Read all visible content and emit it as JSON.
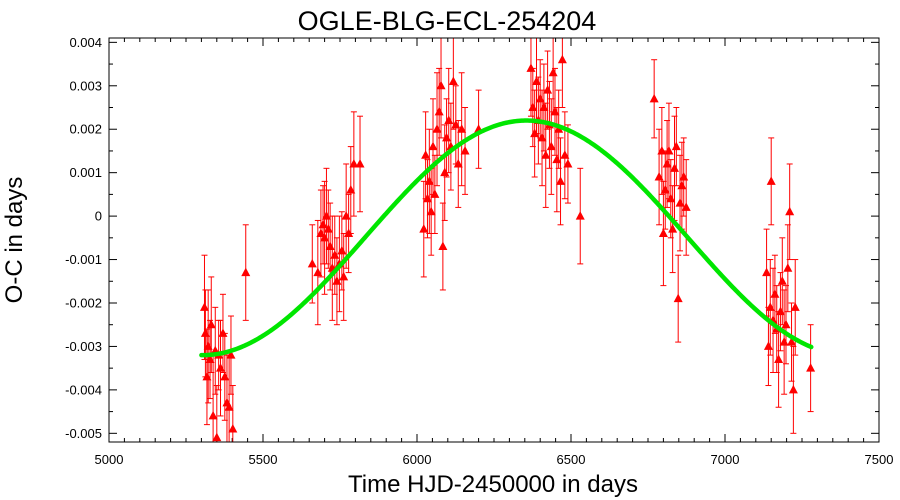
{
  "chart_data": {
    "type": "scatter",
    "title": "OGLE-BLG-ECL-254204",
    "xlabel": "Time HJD-2450000 in days",
    "ylabel": "O-C in days",
    "xlim": [
      5000,
      7500
    ],
    "ylim": [
      -0.0052,
      0.0041
    ],
    "xticks": [
      5000,
      5500,
      6000,
      6500,
      7000,
      7500
    ],
    "yticks": [
      -0.005,
      -0.004,
      -0.003,
      -0.002,
      -0.001,
      0,
      0.001,
      0.002,
      0.003,
      0.004
    ],
    "ytick_labels": [
      "-0.005",
      "-0.004",
      "-0.003",
      "-0.002",
      "-0.001",
      "0",
      "0.001",
      "0.002",
      "0.003",
      "0.004"
    ],
    "grid": false,
    "colors": {
      "points": "#ff0000",
      "fit": "#00e600"
    },
    "series": [
      {
        "kind": "points_with_errorbars",
        "marker": "triangle",
        "points": [
          {
            "x": 5310,
            "y": -0.0021,
            "err": 0.0012
          },
          {
            "x": 5313,
            "y": -0.0027,
            "err": 0.001
          },
          {
            "x": 5318,
            "y": -0.0037,
            "err": 0.0011
          },
          {
            "x": 5322,
            "y": -0.003,
            "err": 0.0013
          },
          {
            "x": 5328,
            "y": -0.0033,
            "err": 0.0009
          },
          {
            "x": 5332,
            "y": -0.0025,
            "err": 0.0011
          },
          {
            "x": 5338,
            "y": -0.0046,
            "err": 0.0014
          },
          {
            "x": 5345,
            "y": -0.0031,
            "err": 0.001
          },
          {
            "x": 5350,
            "y": -0.0051,
            "err": 0.0012
          },
          {
            "x": 5356,
            "y": -0.0032,
            "err": 0.0008
          },
          {
            "x": 5362,
            "y": -0.0035,
            "err": 0.0011
          },
          {
            "x": 5370,
            "y": -0.0027,
            "err": 0.0009
          },
          {
            "x": 5376,
            "y": -0.0037,
            "err": 0.001
          },
          {
            "x": 5383,
            "y": -0.0043,
            "err": 0.0011
          },
          {
            "x": 5390,
            "y": -0.0044,
            "err": 0.0012
          },
          {
            "x": 5396,
            "y": -0.0032,
            "err": 0.0009
          },
          {
            "x": 5402,
            "y": -0.0049,
            "err": 0.001
          },
          {
            "x": 5444,
            "y": -0.0013,
            "err": 0.0011
          },
          {
            "x": 5660,
            "y": -0.0011,
            "err": 0.0009
          },
          {
            "x": 5678,
            "y": -0.0013,
            "err": 0.0012
          },
          {
            "x": 5688,
            "y": -0.0004,
            "err": 0.001
          },
          {
            "x": 5695,
            "y": -0.0002,
            "err": 0.0009
          },
          {
            "x": 5700,
            "y": -0.0005,
            "err": 0.0013
          },
          {
            "x": 5706,
            "y": 0.0,
            "err": 0.0011
          },
          {
            "x": 5712,
            "y": -0.0003,
            "err": 0.0009
          },
          {
            "x": 5718,
            "y": -0.0007,
            "err": 0.001
          },
          {
            "x": 5725,
            "y": -0.0012,
            "err": 0.0012
          },
          {
            "x": 5733,
            "y": -0.0009,
            "err": 0.0009
          },
          {
            "x": 5740,
            "y": -0.0015,
            "err": 0.001
          },
          {
            "x": 5748,
            "y": -0.0011,
            "err": 0.0011
          },
          {
            "x": 5756,
            "y": -0.0008,
            "err": 0.0009
          },
          {
            "x": 5762,
            "y": -0.0014,
            "err": 0.001
          },
          {
            "x": 5770,
            "y": 0.0,
            "err": 0.0012
          },
          {
            "x": 5778,
            "y": -0.0004,
            "err": 0.0009
          },
          {
            "x": 5785,
            "y": 0.0006,
            "err": 0.001
          },
          {
            "x": 5795,
            "y": 0.0012,
            "err": 0.0012
          },
          {
            "x": 5815,
            "y": 0.0012,
            "err": 0.0011
          },
          {
            "x": 6022,
            "y": -0.0003,
            "err": 0.0011
          },
          {
            "x": 6028,
            "y": 0.0014,
            "err": 0.001
          },
          {
            "x": 6034,
            "y": 0.0004,
            "err": 0.0009
          },
          {
            "x": 6040,
            "y": 0.0008,
            "err": 0.0012
          },
          {
            "x": 6046,
            "y": 0.0001,
            "err": 0.001
          },
          {
            "x": 6052,
            "y": 0.0016,
            "err": 0.0011
          },
          {
            "x": 6058,
            "y": 0.0005,
            "err": 0.0009
          },
          {
            "x": 6065,
            "y": 0.002,
            "err": 0.0013
          },
          {
            "x": 6072,
            "y": 0.0024,
            "err": 0.001
          },
          {
            "x": 6078,
            "y": 0.003,
            "err": 0.0012
          },
          {
            "x": 6084,
            "y": -0.0007,
            "err": 0.001
          },
          {
            "x": 6090,
            "y": 0.001,
            "err": 0.0011
          },
          {
            "x": 6096,
            "y": 0.0018,
            "err": 0.0009
          },
          {
            "x": 6103,
            "y": 0.0022,
            "err": 0.0012
          },
          {
            "x": 6110,
            "y": 0.0016,
            "err": 0.001
          },
          {
            "x": 6118,
            "y": 0.0031,
            "err": 0.0011
          },
          {
            "x": 6126,
            "y": 0.0021,
            "err": 0.0009
          },
          {
            "x": 6134,
            "y": 0.0012,
            "err": 0.001
          },
          {
            "x": 6145,
            "y": 0.002,
            "err": 0.0013
          },
          {
            "x": 6156,
            "y": 0.0015,
            "err": 0.001
          },
          {
            "x": 6200,
            "y": 0.002,
            "err": 0.0009
          },
          {
            "x": 6370,
            "y": 0.0034,
            "err": 0.0011
          },
          {
            "x": 6376,
            "y": 0.0025,
            "err": 0.0009
          },
          {
            "x": 6382,
            "y": 0.0019,
            "err": 0.001
          },
          {
            "x": 6388,
            "y": 0.0031,
            "err": 0.0012
          },
          {
            "x": 6394,
            "y": 0.0022,
            "err": 0.001
          },
          {
            "x": 6400,
            "y": 0.0027,
            "err": 0.0009
          },
          {
            "x": 6406,
            "y": 0.0018,
            "err": 0.0011
          },
          {
            "x": 6412,
            "y": 0.0025,
            "err": 0.001
          },
          {
            "x": 6418,
            "y": 0.0014,
            "err": 0.0012
          },
          {
            "x": 6424,
            "y": 0.0029,
            "err": 0.0009
          },
          {
            "x": 6430,
            "y": 0.0021,
            "err": 0.001
          },
          {
            "x": 6436,
            "y": 0.0016,
            "err": 0.0011
          },
          {
            "x": 6442,
            "y": 0.0033,
            "err": 0.0009
          },
          {
            "x": 6448,
            "y": 0.0024,
            "err": 0.001
          },
          {
            "x": 6454,
            "y": 0.0013,
            "err": 0.0012
          },
          {
            "x": 6460,
            "y": 0.002,
            "err": 0.0009
          },
          {
            "x": 6466,
            "y": 0.0008,
            "err": 0.001
          },
          {
            "x": 6472,
            "y": 0.0036,
            "err": 0.0011
          },
          {
            "x": 6480,
            "y": 0.0014,
            "err": 0.001
          },
          {
            "x": 6490,
            "y": 0.0012,
            "err": 0.0009
          },
          {
            "x": 6530,
            "y": 0.0,
            "err": 0.0011
          },
          {
            "x": 6770,
            "y": 0.0027,
            "err": 0.0009
          },
          {
            "x": 6786,
            "y": 0.0009,
            "err": 0.0011
          },
          {
            "x": 6795,
            "y": 0.0015,
            "err": 0.001
          },
          {
            "x": 6800,
            "y": -0.0004,
            "err": 0.0012
          },
          {
            "x": 6806,
            "y": 0.0006,
            "err": 0.0009
          },
          {
            "x": 6812,
            "y": 0.0012,
            "err": 0.001
          },
          {
            "x": 6818,
            "y": 0.0015,
            "err": 0.0011
          },
          {
            "x": 6824,
            "y": 0.0004,
            "err": 0.0009
          },
          {
            "x": 6830,
            "y": -0.0003,
            "err": 0.001
          },
          {
            "x": 6836,
            "y": 0.0011,
            "err": 0.0012
          },
          {
            "x": 6842,
            "y": 0.0016,
            "err": 0.0009
          },
          {
            "x": 6848,
            "y": -0.0019,
            "err": 0.001
          },
          {
            "x": 6854,
            "y": 0.0003,
            "err": 0.0011
          },
          {
            "x": 6860,
            "y": 0.0007,
            "err": 0.001
          },
          {
            "x": 6866,
            "y": 0.0009,
            "err": 0.0009
          },
          {
            "x": 6874,
            "y": 0.0002,
            "err": 0.0011
          },
          {
            "x": 7135,
            "y": -0.0013,
            "err": 0.001
          },
          {
            "x": 7141,
            "y": -0.003,
            "err": 0.0009
          },
          {
            "x": 7147,
            "y": -0.0021,
            "err": 0.0011
          },
          {
            "x": 7150,
            "y": 0.0008,
            "err": 0.001
          },
          {
            "x": 7156,
            "y": -0.0024,
            "err": 0.0012
          },
          {
            "x": 7162,
            "y": -0.0018,
            "err": 0.0009
          },
          {
            "x": 7168,
            "y": -0.0026,
            "err": 0.001
          },
          {
            "x": 7174,
            "y": -0.0033,
            "err": 0.0011
          },
          {
            "x": 7180,
            "y": -0.0022,
            "err": 0.0009
          },
          {
            "x": 7186,
            "y": -0.0015,
            "err": 0.001
          },
          {
            "x": 7192,
            "y": -0.0029,
            "err": 0.0012
          },
          {
            "x": 7198,
            "y": -0.0025,
            "err": 0.0009
          },
          {
            "x": 7204,
            "y": -0.0012,
            "err": 0.001
          },
          {
            "x": 7210,
            "y": 0.0001,
            "err": 0.0011
          },
          {
            "x": 7216,
            "y": -0.0029,
            "err": 0.0009
          },
          {
            "x": 7222,
            "y": -0.004,
            "err": 0.001
          },
          {
            "x": 7228,
            "y": -0.0021,
            "err": 0.0011
          },
          {
            "x": 7278,
            "y": -0.0035,
            "err": 0.001
          }
        ]
      },
      {
        "kind": "fit_curve",
        "x_range": [
          5300,
          7280
        ],
        "amplitude": 0.0027,
        "x_of_max": 6355,
        "half_period": 1050,
        "offset": -0.0005
      }
    ]
  }
}
